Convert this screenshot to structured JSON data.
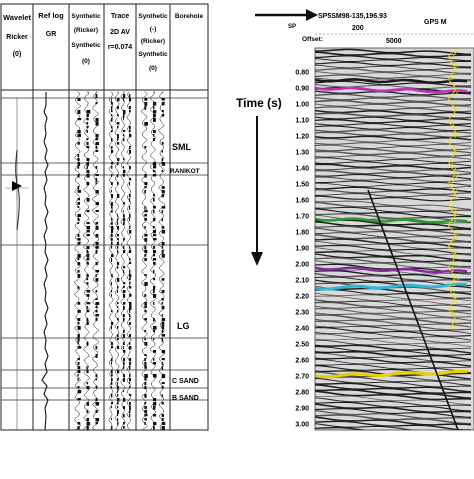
{
  "tie_panel": {
    "columns": [
      {
        "id": "wavelet",
        "lines": [
          "Wavelet",
          "Ricker",
          "(0)"
        ]
      },
      {
        "id": "reflog",
        "lines": [
          "Ref log",
          "GR"
        ]
      },
      {
        "id": "synth1",
        "lines": [
          "Synthetic",
          "(Ricker)",
          "Synthetic",
          "(0)"
        ]
      },
      {
        "id": "trace",
        "lines": [
          "Trace",
          "2D AV",
          "r=0.074"
        ]
      },
      {
        "id": "synth2",
        "lines": [
          "Synthetic",
          "(-)",
          "(Ricker)",
          "Synthetic",
          "(0)"
        ]
      },
      {
        "id": "borehole",
        "lines": [
          "Borehole"
        ]
      }
    ],
    "formations": [
      "SML",
      "RANIKOT",
      "LG",
      "C SAND",
      "B SAND"
    ]
  },
  "seismic": {
    "arrow_label": "SP5SM98-135,196.93",
    "gps_label": "GPS M",
    "sp_label": "SP",
    "sp_value": "200",
    "offset_label": "Offset:",
    "offset_value": "5000",
    "time_axis_label": "Time (s)",
    "time_ticks": [
      "0.80",
      "0.90",
      "1.00",
      "1.10",
      "1.20",
      "1.30",
      "1.40",
      "1.50",
      "1.60",
      "1.70",
      "1.80",
      "1.90",
      "2.00",
      "2.10",
      "2.20",
      "2.30",
      "2.40",
      "2.50",
      "2.60",
      "2.70",
      "2.80",
      "2.90",
      "3.00"
    ],
    "horizon_colors": [
      "#1a1a1a",
      "#c030c0",
      "#2a9a2a",
      "#8a2aa0",
      "#2ab8d8",
      "#e8d000"
    ],
    "well_track_color": "#f2e000"
  }
}
